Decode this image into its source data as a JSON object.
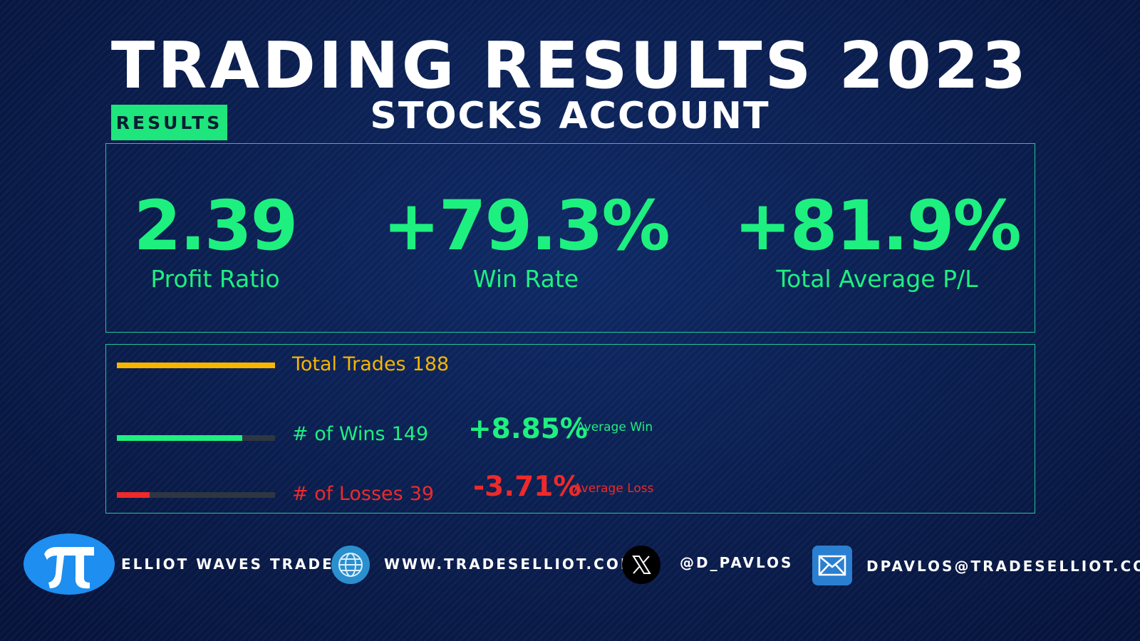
{
  "header": {
    "title": "TRADING RESULTS 2023",
    "subtitle": "STOCKS ACCOUNT",
    "badge": "RESULTS"
  },
  "kpis": [
    {
      "value": "2.39",
      "label": "Profit Ratio"
    },
    {
      "value": "+79.3%",
      "label": "Win Rate"
    },
    {
      "value": "+81.9%",
      "label": "Total Average P/L"
    }
  ],
  "stats": {
    "total_trades": {
      "label": "Total Trades",
      "value": 188
    },
    "wins": {
      "label": "# of Wins",
      "value": 149,
      "average": "+8.85%",
      "average_label": "Average Win"
    },
    "losses": {
      "label": "# of Losses",
      "value": 39,
      "average": "-3.71%",
      "average_label": "Average Loss"
    }
  },
  "footer": {
    "brand": "ELLIOT WAVES TRADES",
    "website": "WWW.TRADESELLIOT.COM",
    "handle": "@D_PAVLOS",
    "email": "DPAVLOS@TRADESELLIOT.COM"
  }
}
